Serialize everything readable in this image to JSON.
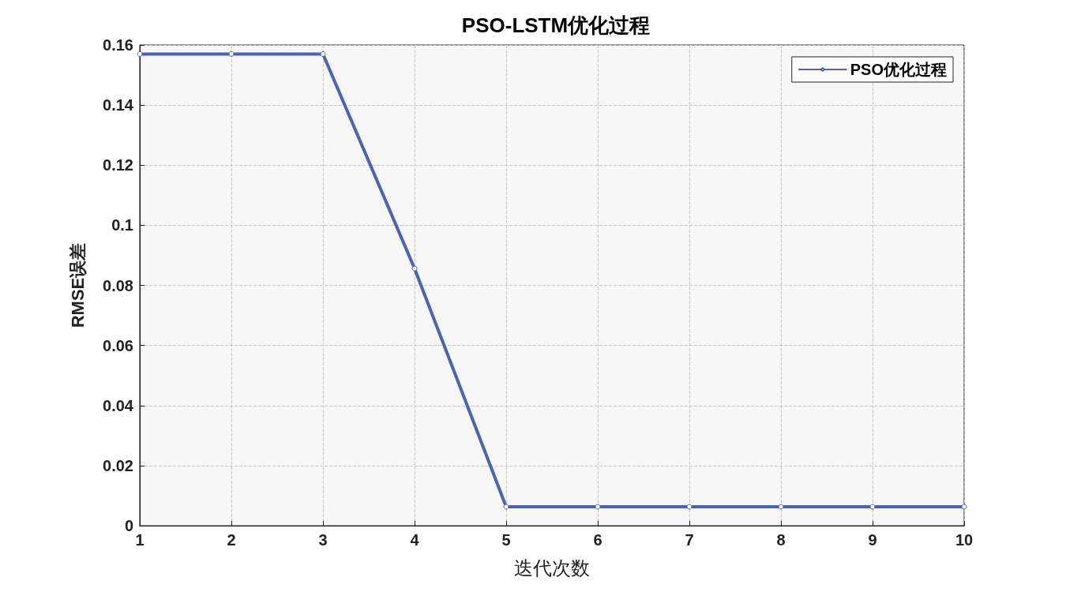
{
  "chart_data": {
    "type": "line",
    "title": "PSO-LSTM优化过程",
    "xlabel": "迭代次数",
    "ylabel": "RMSE误差",
    "x": [
      1,
      2,
      3,
      4,
      5,
      6,
      7,
      8,
      9,
      10
    ],
    "series": [
      {
        "name": "PSO优化过程",
        "color": "#4a63b4",
        "values": [
          0.157,
          0.157,
          0.157,
          0.0856,
          0.0063,
          0.0063,
          0.0063,
          0.0063,
          0.0063,
          0.0063
        ]
      }
    ],
    "xlim": [
      1,
      10
    ],
    "xticks": [
      1,
      2,
      3,
      4,
      5,
      6,
      7,
      8,
      9,
      10
    ],
    "ylim": [
      0,
      0.16
    ],
    "yticks": [
      0,
      0.02,
      0.04,
      0.06,
      0.08,
      0.1,
      0.12,
      0.14,
      0.16
    ],
    "grid": true,
    "legend": "top right",
    "marker": "circle",
    "line_style": "solid"
  }
}
